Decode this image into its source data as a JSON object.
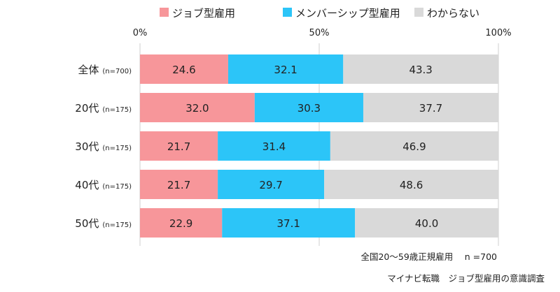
{
  "chart_data": {
    "type": "bar",
    "orientation": "horizontal",
    "stacked": true,
    "percent_scale": true,
    "categories": [
      "全体",
      "20代",
      "30代",
      "40代",
      "50代"
    ],
    "category_notes": [
      "(n=700)",
      "(n=175)",
      "(n=175)",
      "(n=175)",
      "(n=175)"
    ],
    "series": [
      {
        "name": "ジョブ型雇用",
        "color": "#f7969a",
        "values": [
          24.6,
          32.0,
          21.7,
          21.7,
          22.9
        ]
      },
      {
        "name": "メンバーシップ型雇用",
        "color": "#2cc5f8",
        "values": [
          32.1,
          30.3,
          31.4,
          29.7,
          37.1
        ]
      },
      {
        "name": "わからない",
        "color": "#d9d9d9",
        "values": [
          43.3,
          37.7,
          46.9,
          48.6,
          40.0
        ]
      }
    ],
    "value_labels": [
      [
        "24.6",
        "32.0",
        "21.7",
        "21.7",
        "22.9"
      ],
      [
        "32.1",
        "30.3",
        "31.4",
        "29.7",
        "37.1"
      ],
      [
        "43.3",
        "37.7",
        "46.9",
        "48.6",
        "40.0"
      ]
    ],
    "x_ticks": [
      "0%",
      "50%",
      "100%"
    ],
    "x_tick_values": [
      0,
      50,
      100
    ],
    "xlim": [
      0,
      100
    ],
    "legend_position": "top",
    "gridlines": true
  },
  "footnotes": {
    "survey": "全国20～59歳正規雇用　 n =700",
    "source": "マイナビ転職　ジョブ型雇用の意識調査"
  }
}
